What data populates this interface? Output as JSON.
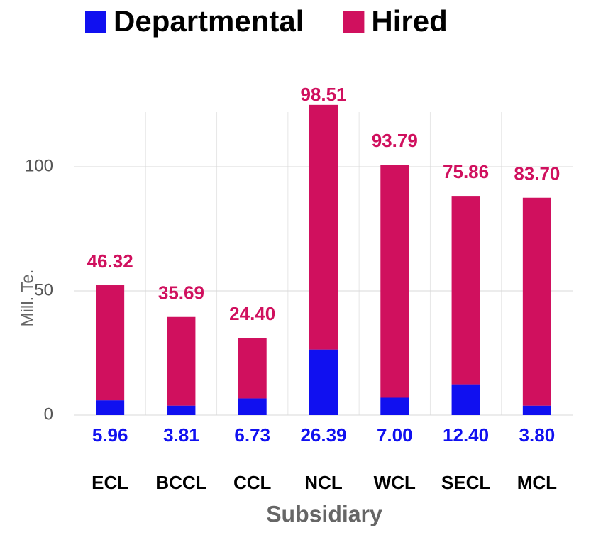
{
  "chart_data": {
    "type": "stacked_bar",
    "x_label": "Subsidiary",
    "y_label": "Mill. Te.",
    "categories": [
      "ECL",
      "BCCL",
      "CCL",
      "NCL",
      "WCL",
      "SECL",
      "MCL"
    ],
    "series": [
      {
        "name": "Departmental",
        "color": "#1010f0",
        "values": [
          5.96,
          3.81,
          6.73,
          26.39,
          7.0,
          12.4,
          3.8
        ],
        "value_labels": [
          "5.96",
          "3.81",
          "6.73",
          "26.39",
          "7.00",
          "12.40",
          "3.80"
        ]
      },
      {
        "name": "Hired",
        "color": "#d0105e",
        "values": [
          46.32,
          35.69,
          24.4,
          98.51,
          93.79,
          75.86,
          83.7
        ],
        "value_labels": [
          "46.32",
          "35.69",
          "24.40",
          "98.51",
          "93.79",
          "75.86",
          "83.70"
        ]
      }
    ],
    "ylim": [
      0,
      122
    ],
    "yticks": [
      0,
      50,
      100
    ],
    "grid": true,
    "legend": "top"
  }
}
